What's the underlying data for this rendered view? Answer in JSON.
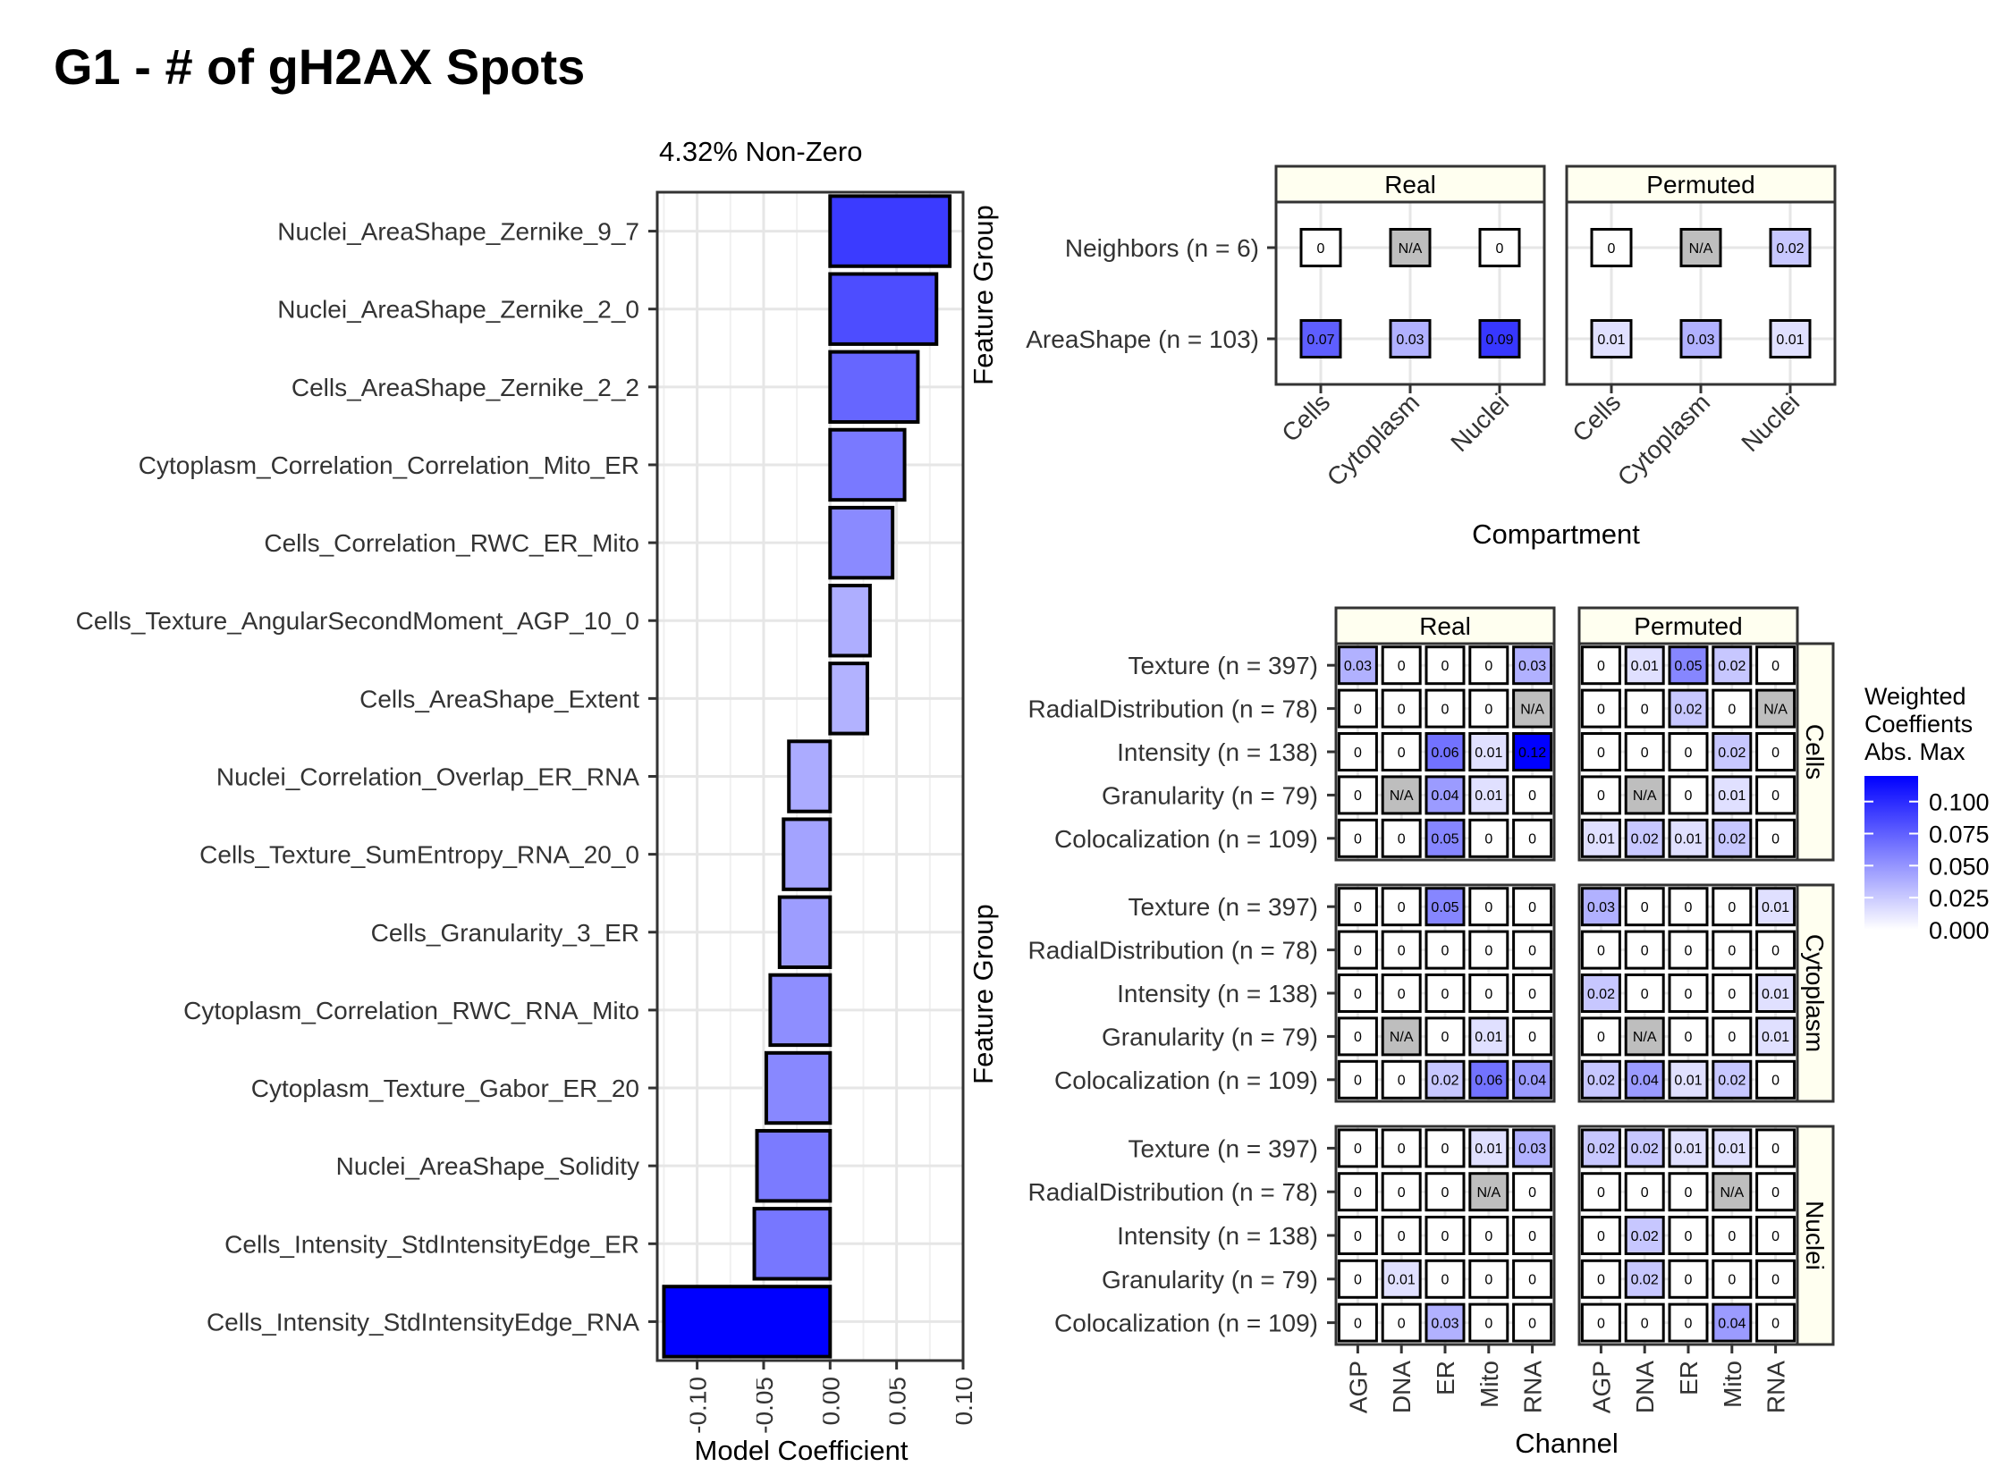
{
  "title": "G1 - # of gH2AX Spots",
  "chart_data": [
    {
      "type": "bar",
      "orientation": "horizontal",
      "title": "4.32% Non-Zero",
      "xlabel": "Model Coefficient",
      "ylabel": "",
      "xlim": [
        -0.13,
        0.1
      ],
      "xticks": [
        "-0.10",
        "-0.05",
        "0.00",
        "0.05",
        "0.10"
      ],
      "xtick_values": [
        -0.1,
        -0.05,
        0,
        0.05,
        0.1
      ],
      "grid": true,
      "color_low": "#ffffff",
      "color_high": "#0000ff",
      "categories": [
        "Nuclei_AreaShape_Zernike_9_7",
        "Nuclei_AreaShape_Zernike_2_0",
        "Cells_AreaShape_Zernike_2_2",
        "Cytoplasm_Correlation_Correlation_Mito_ER",
        "Cells_Correlation_RWC_ER_Mito",
        "Cells_Texture_AngularSecondMoment_AGP_10_0",
        "Cells_AreaShape_Extent",
        "Nuclei_Correlation_Overlap_ER_RNA",
        "Cells_Texture_SumEntropy_RNA_20_0",
        "Cells_Granularity_3_ER",
        "Cytoplasm_Correlation_RWC_RNA_Mito",
        "Cytoplasm_Texture_Gabor_ER_20",
        "Nuclei_AreaShape_Solidity",
        "Cells_Intensity_StdIntensityEdge_ER",
        "Cells_Intensity_StdIntensityEdge_RNA"
      ],
      "values": [
        0.09,
        0.08,
        0.066,
        0.056,
        0.047,
        0.03,
        0.028,
        -0.031,
        -0.035,
        -0.038,
        -0.045,
        -0.048,
        -0.055,
        -0.057,
        -0.125
      ]
    },
    {
      "type": "heatmap",
      "xlabel": "Compartment",
      "ylabel": "Feature Group",
      "facets": [
        "Real",
        "Permuted"
      ],
      "x": [
        "Cells",
        "Cytoplasm",
        "Nuclei"
      ],
      "y": [
        "Neighbors (n = 6)",
        "AreaShape (n = 103)"
      ],
      "values": {
        "Real": [
          [
            0,
            null,
            0
          ],
          [
            0.07,
            0.03,
            0.09
          ]
        ],
        "Permuted": [
          [
            0,
            null,
            0.02
          ],
          [
            0.01,
            0.03,
            0.01
          ]
        ]
      },
      "labels": {
        "Real": [
          [
            "0",
            "N/A",
            "0"
          ],
          [
            "0.07",
            "0.03",
            "0.09"
          ]
        ],
        "Permuted": [
          [
            "0",
            "N/A",
            "0.02"
          ],
          [
            "0.01",
            "0.03",
            "0.01"
          ]
        ]
      }
    },
    {
      "type": "heatmap",
      "xlabel": "Channel",
      "ylabel": "Feature Group",
      "facets_col": [
        "Real",
        "Permuted"
      ],
      "facets_row": [
        "Cells",
        "Cytoplasm",
        "Nuclei"
      ],
      "x": [
        "AGP",
        "DNA",
        "ER",
        "Mito",
        "RNA"
      ],
      "y": [
        "Texture (n = 397)",
        "RadialDistribution (n = 78)",
        "Intensity (n = 138)",
        "Granularity (n = 79)",
        "Colocalization (n = 109)"
      ],
      "values": {
        "Cells": {
          "Real": [
            [
              0.03,
              0,
              0,
              0,
              0.03
            ],
            [
              0,
              0,
              0,
              0,
              null
            ],
            [
              0,
              0,
              0.06,
              0.01,
              0.12
            ],
            [
              0,
              null,
              0.04,
              0.01,
              0
            ],
            [
              0,
              0,
              0.05,
              0,
              0
            ]
          ],
          "Permuted": [
            [
              0,
              0.01,
              0.05,
              0.02,
              0
            ],
            [
              0,
              0,
              0.02,
              0,
              null
            ],
            [
              0,
              0,
              0,
              0.02,
              0
            ],
            [
              0,
              null,
              0,
              0.01,
              0
            ],
            [
              0.01,
              0.02,
              0.01,
              0.02,
              0
            ]
          ]
        },
        "Cytoplasm": {
          "Real": [
            [
              0,
              0,
              0.05,
              0,
              0
            ],
            [
              0,
              0,
              0,
              0,
              0
            ],
            [
              0,
              0,
              0,
              0,
              0
            ],
            [
              0,
              null,
              0,
              0.01,
              0
            ],
            [
              0,
              0,
              0.02,
              0.06,
              0.04
            ]
          ],
          "Permuted": [
            [
              0.03,
              0,
              0,
              0,
              0.01
            ],
            [
              0,
              0,
              0,
              0,
              0
            ],
            [
              0.02,
              0,
              0,
              0,
              0.01
            ],
            [
              0,
              null,
              0,
              0,
              0.01
            ],
            [
              0.02,
              0.04,
              0.01,
              0.02,
              0
            ]
          ]
        },
        "Nuclei": {
          "Real": [
            [
              0,
              0,
              0,
              0.01,
              0.03
            ],
            [
              0,
              0,
              0,
              null,
              0
            ],
            [
              0,
              0,
              0,
              0,
              0
            ],
            [
              0,
              0.01,
              0,
              0,
              0
            ],
            [
              0,
              0,
              0.03,
              0,
              0
            ]
          ],
          "Permuted": [
            [
              0.02,
              0.02,
              0.01,
              0.01,
              0
            ],
            [
              0,
              0,
              0,
              null,
              0
            ],
            [
              0,
              0.02,
              0,
              0,
              0
            ],
            [
              0,
              0.02,
              0,
              0,
              0
            ],
            [
              0,
              0,
              0,
              0.04,
              0
            ]
          ]
        }
      },
      "labels": {
        "Cells": {
          "Real": [
            [
              "0.03",
              "0",
              "0",
              "0",
              "0.03"
            ],
            [
              "0",
              "0",
              "0",
              "0",
              "N/A"
            ],
            [
              "0",
              "0",
              "0.06",
              "0.01",
              "0.12"
            ],
            [
              "0",
              "N/A",
              "0.04",
              "0.01",
              "0"
            ],
            [
              "0",
              "0",
              "0.05",
              "0",
              "0"
            ]
          ],
          "Permuted": [
            [
              "0",
              "0.01",
              "0.05",
              "0.02",
              "0"
            ],
            [
              "0",
              "0",
              "0.02",
              "0",
              "N/A"
            ],
            [
              "0",
              "0",
              "0",
              "0.02",
              "0"
            ],
            [
              "0",
              "N/A",
              "0",
              "0.01",
              "0"
            ],
            [
              "0.01",
              "0.02",
              "0.01",
              "0.02",
              "0"
            ]
          ]
        },
        "Cytoplasm": {
          "Real": [
            [
              "0",
              "0",
              "0.05",
              "0",
              "0"
            ],
            [
              "0",
              "0",
              "0",
              "0",
              "0"
            ],
            [
              "0",
              "0",
              "0",
              "0",
              "0"
            ],
            [
              "0",
              "N/A",
              "0",
              "0.01",
              "0"
            ],
            [
              "0",
              "0",
              "0.02",
              "0.06",
              "0.04"
            ]
          ],
          "Permuted": [
            [
              "0.03",
              "0",
              "0",
              "0",
              "0.01"
            ],
            [
              "0",
              "0",
              "0",
              "0",
              "0"
            ],
            [
              "0.02",
              "0",
              "0",
              "0",
              "0.01"
            ],
            [
              "0",
              "N/A",
              "0",
              "0",
              "0.01"
            ],
            [
              "0.02",
              "0.04",
              "0.01",
              "0.02",
              "0"
            ]
          ]
        },
        "Nuclei": {
          "Real": [
            [
              "0",
              "0",
              "0",
              "0.01",
              "0.03"
            ],
            [
              "0",
              "0",
              "0",
              "N/A",
              "0"
            ],
            [
              "0",
              "0",
              "0",
              "0",
              "0"
            ],
            [
              "0",
              "0.01",
              "0",
              "0",
              "0"
            ],
            [
              "0",
              "0",
              "0.03",
              "0",
              "0"
            ]
          ],
          "Permuted": [
            [
              "0.02",
              "0.02",
              "0.01",
              "0.01",
              "0"
            ],
            [
              "0",
              "0",
              "0",
              "N/A",
              "0"
            ],
            [
              "0",
              "0.02",
              "0",
              "0",
              "0"
            ],
            [
              "0",
              "0.02",
              "0",
              "0",
              "0"
            ],
            [
              "0",
              "0",
              "0",
              "0.04",
              "0"
            ]
          ]
        }
      }
    }
  ],
  "legend": {
    "title_lines": [
      "Weighted",
      "Coeffients",
      "Abs. Max"
    ],
    "ticks": [
      "0.100",
      "0.075",
      "0.050",
      "0.025",
      "0.000"
    ],
    "tick_values": [
      0.1,
      0.075,
      0.05,
      0.025,
      0
    ],
    "color_low": "#ffffff",
    "color_high": "#0000ff",
    "na_color": "#bebebe",
    "max": 0.12
  }
}
